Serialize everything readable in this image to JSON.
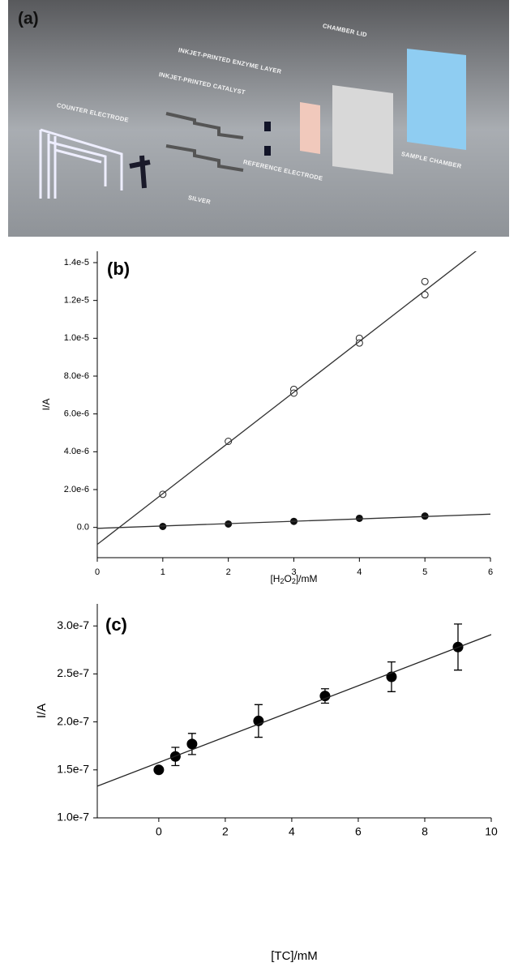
{
  "figure_a": {
    "panel_label": "(a)",
    "labels": [
      "COUNTER ELECTRODE",
      "INKJET-PRINTED CATALYST",
      "INKJET-PRINTED ENZYME LAYER",
      "CHAMBER LID",
      "SILVER",
      "REFERENCE ELECTRODE",
      "SAMPLE CHAMBER"
    ]
  },
  "chart_data": [
    {
      "type": "scatter",
      "panel_label": "(b)",
      "y_label": "I/A",
      "x_label": [
        "[H",
        "2",
        "O",
        "2",
        "]/mM"
      ],
      "xlim": [
        0,
        6
      ],
      "xticks": [
        0,
        1,
        2,
        3,
        4,
        5,
        6
      ],
      "ylim": [
        -1.6e-06,
        1.46e-05
      ],
      "yticks": [
        {
          "value": 0,
          "label": "0.0"
        },
        {
          "value": 2e-06,
          "label": "2.0e-6"
        },
        {
          "value": 4e-06,
          "label": "4.0e-6"
        },
        {
          "value": 6e-06,
          "label": "6.0e-6"
        },
        {
          "value": 8e-06,
          "label": "8.0e-6"
        },
        {
          "value": 1e-05,
          "label": "1.0e-5"
        },
        {
          "value": 1.2e-05,
          "label": "1.2e-5"
        },
        {
          "value": 1.4e-05,
          "label": "1.4e-5"
        }
      ],
      "series": [
        {
          "marker": "open",
          "color": "#222222",
          "x": [
            1,
            2,
            3,
            3,
            4,
            4,
            5,
            5
          ],
          "values": [
            1.75e-06,
            4.55e-06,
            7.3e-06,
            7.1e-06,
            1e-05,
            9.75e-06,
            1.3e-05,
            1.23e-05
          ]
        },
        {
          "marker": "filled",
          "color": "#111111",
          "x": [
            1,
            2,
            3,
            4,
            5
          ],
          "values": [
            5e-08,
            1.8e-07,
            3.2e-07,
            4.8e-07,
            6e-07
          ]
        },
        {
          "marker": "line",
          "color": "#333333",
          "x": [
            0,
            6
          ],
          "values": [
            -9e-07,
            1.52e-05
          ]
        },
        {
          "marker": "line",
          "color": "#333333",
          "x": [
            0,
            6
          ],
          "values": [
            -5e-08,
            7e-07
          ]
        }
      ]
    },
    {
      "type": "scatter",
      "panel_label": "(c)",
      "y_label": "I/A",
      "x_label": [
        "[TC]/mM"
      ],
      "xlim": [
        -1.85,
        10
      ],
      "xticks": [
        0,
        2,
        4,
        6,
        8,
        10
      ],
      "ylim": [
        1e-07,
        3.23e-07
      ],
      "yticks": [
        {
          "value": 1e-07,
          "label": "1.0e-7"
        },
        {
          "value": 1.5e-07,
          "label": "1.5e-7"
        },
        {
          "value": 2e-07,
          "label": "2.0e-7"
        },
        {
          "value": 2.5e-07,
          "label": "2.5e-7"
        },
        {
          "value": 3e-07,
          "label": "3.0e-7"
        }
      ],
      "series": [
        {
          "marker": "filled",
          "color": "#000000",
          "x": [
            0,
            0.5,
            1,
            3,
            5,
            7,
            9
          ],
          "values": [
            1.5e-07,
            1.64e-07,
            1.77e-07,
            2.01e-07,
            2.27e-07,
            2.47e-07,
            2.78e-07
          ],
          "errors": [
            null,
            9.5e-09,
            1.1e-08,
            1.7e-08,
            7.5e-09,
            1.55e-08,
            2.4e-08
          ]
        },
        {
          "marker": "line",
          "color": "#222222",
          "x": [
            -1.85,
            10
          ],
          "values": [
            1.33e-07,
            2.91e-07
          ]
        }
      ]
    }
  ]
}
